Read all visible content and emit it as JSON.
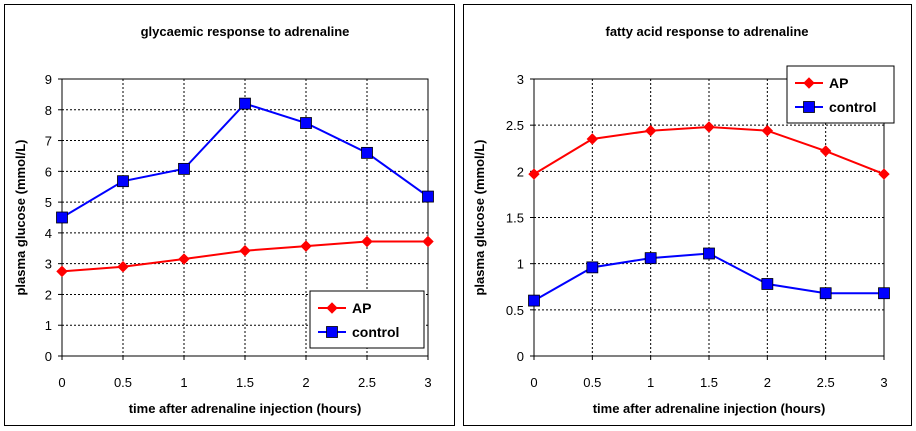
{
  "chart_data": [
    {
      "type": "line",
      "title": "glycaemic response to adrenaline",
      "xlabel": "time after adrenaline injection (hours)",
      "ylabel": "plasma glucose (mmol/L)",
      "x": [
        0,
        0.5,
        1,
        1.5,
        2,
        2.5,
        3
      ],
      "x_tick_labels": [
        "0",
        "0.5",
        "1",
        "1.5",
        "2",
        "2.5",
        "3"
      ],
      "y_tick_labels": [
        "0",
        "1",
        "2",
        "3",
        "4",
        "5",
        "6",
        "7",
        "8",
        "9"
      ],
      "xlim": [
        0,
        3
      ],
      "ylim": [
        0,
        9
      ],
      "grid": true,
      "legend_position": "bottom-right",
      "series": [
        {
          "name": "AP",
          "color": "#ff0000",
          "marker": "diamond",
          "values": [
            2.75,
            2.9,
            3.15,
            3.42,
            3.57,
            3.72,
            3.72
          ]
        },
        {
          "name": "control",
          "color": "#0000ff",
          "marker": "square",
          "values": [
            4.5,
            5.68,
            6.08,
            8.2,
            7.57,
            6.6,
            5.18
          ]
        }
      ]
    },
    {
      "type": "line",
      "title": "fatty acid response to adrenaline",
      "xlabel": "time after adrenaline injection (hours)",
      "ylabel": "plasma glucose (mmol/L)",
      "x": [
        0,
        0.5,
        1,
        1.5,
        2,
        2.5,
        3
      ],
      "x_tick_labels": [
        "0",
        "0.5",
        "1",
        "1.5",
        "2",
        "2.5",
        "3"
      ],
      "y_tick_labels": [
        "0",
        "0.5",
        "1",
        "1.5",
        "2",
        "2.5",
        "3"
      ],
      "xlim": [
        0,
        3
      ],
      "ylim": [
        0,
        3
      ],
      "grid": true,
      "legend_position": "top-right",
      "series": [
        {
          "name": "AP",
          "color": "#ff0000",
          "marker": "diamond",
          "values": [
            1.97,
            2.35,
            2.44,
            2.48,
            2.44,
            2.22,
            1.97
          ]
        },
        {
          "name": "control",
          "color": "#0000ff",
          "marker": "square",
          "values": [
            0.6,
            0.96,
            1.06,
            1.11,
            0.78,
            0.68,
            0.68
          ]
        }
      ]
    }
  ]
}
